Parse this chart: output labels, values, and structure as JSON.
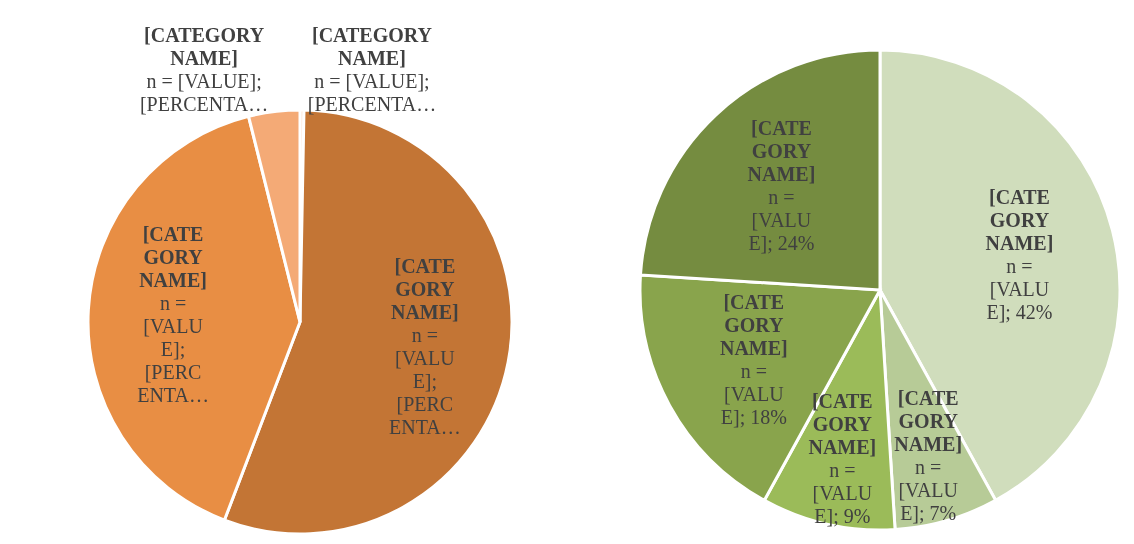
{
  "chart_data": [
    {
      "type": "pie",
      "categories": [
        "[CATEGORY NAME]",
        "[CATEGORY NAME]",
        "[CATEGORY NAME]",
        "[CATEGORY NAME]"
      ],
      "values": [
        0.3,
        55.5,
        40.3,
        3.9
      ],
      "colors": [
        "#f8cbad",
        "#c37535",
        "#e88e44",
        "#f4aa76"
      ],
      "value_labels": [
        "n = [VALUE]; [PERCENTA…",
        "n = [VALUE]; [PERCENTA…",
        "n = [VALUE]; [PERCENTA…",
        "n = [VALUE]; [PERCENTA…"
      ]
    },
    {
      "type": "pie",
      "categories": [
        "[CATEGORY NAME]",
        "[CATEGORY NAME]",
        "[CATEGORY NAME]",
        "[CATEGORY NAME]",
        "[CATEGORY NAME]"
      ],
      "values": [
        42,
        7,
        9,
        18,
        24
      ],
      "colors": [
        "#d0ddbc",
        "#b7cb97",
        "#9bbb59",
        "#89a44c",
        "#758c40"
      ],
      "value_labels": [
        "n = [VALUE]; 42%",
        "n = [VALUE]; 7%",
        "n = [VALUE]; 9%",
        "n = [VALUE]; 18%",
        "n = [VALUE]; 24%"
      ]
    }
  ]
}
